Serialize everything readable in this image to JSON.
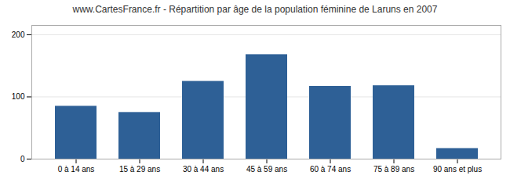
{
  "chart_data": {
    "type": "bar",
    "title": "www.CartesFrance.fr - Répartition par âge de la population féminine de Laruns en 2007",
    "categories": [
      "0 à 14 ans",
      "15 à 29 ans",
      "30 à 44 ans",
      "45 à 59 ans",
      "60 à 74 ans",
      "75 à 89 ans",
      "90 ans et plus"
    ],
    "values": [
      85,
      75,
      125,
      168,
      117,
      118,
      17
    ],
    "color": "#2e6096",
    "ylim": [
      0,
      215
    ],
    "yticks": [
      0,
      100,
      200
    ],
    "grid": true
  }
}
